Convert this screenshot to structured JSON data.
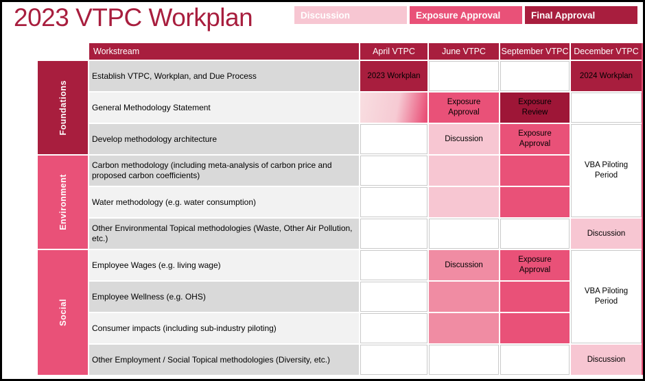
{
  "page": {
    "title": "2023 VTPC Workplan"
  },
  "colors": {
    "dark_red": "#A81E3E",
    "exposure_review_red": "#9E1637",
    "medium_pink": "#E95178",
    "light_pink": "#F7C6D2",
    "social_discussion_pink": "#F08CA3",
    "row_gray_dark": "#D9D9D9",
    "row_gray_light": "#F2F2F2",
    "table_right_border": "#E95178"
  },
  "legend": {
    "items": [
      {
        "label": "Discussion",
        "color": "#F7C6D2"
      },
      {
        "label": "Exposure Approval",
        "color": "#E95178"
      },
      {
        "label": "Final Approval",
        "color": "#A81E3E"
      }
    ]
  },
  "table": {
    "headers": {
      "workstream": "Workstream",
      "april": "April VTPC",
      "june": "June VTPC",
      "september": "September VTPC",
      "december": "December VTPC"
    },
    "categories": [
      {
        "label": "Foundations",
        "rows": "1-3",
        "color": "#A81E3E"
      },
      {
        "label": "Environment",
        "rows": "4-6",
        "color": "#E95178"
      },
      {
        "label": "Social",
        "rows": "7-10",
        "color": "#E95178"
      }
    ],
    "rows": [
      {
        "category": "Foundations",
        "workstream": "Establish VTPC, Workplan, and Due Process",
        "cells": {
          "april": {
            "label": "2023 Workplan",
            "status": "final-approval"
          },
          "june": {
            "label": "",
            "status": "none"
          },
          "september": {
            "label": "",
            "status": "none"
          },
          "december": {
            "label": "2024 Workplan",
            "status": "final-approval"
          }
        }
      },
      {
        "category": "Foundations",
        "workstream": "General Methodology Statement",
        "cells": {
          "april": {
            "label": "",
            "status": "discussion-to-exposure-gradient"
          },
          "june": {
            "label": "Exposure Approval",
            "status": "exposure-approval"
          },
          "september": {
            "label": "Exposure Review",
            "status": "exposure-review"
          },
          "december": {
            "label": "",
            "status": "none"
          }
        }
      },
      {
        "category": "Foundations",
        "workstream": "Develop methodology architecture",
        "cells": {
          "april": {
            "label": "",
            "status": "none"
          },
          "june": {
            "label": "Discussion",
            "status": "discussion"
          },
          "september": {
            "label": "Exposure Approval",
            "status": "exposure-approval"
          },
          "december": {
            "label": "VBA Piloting Period",
            "status": "piloting",
            "rowspan": 3
          }
        }
      },
      {
        "category": "Environment",
        "workstream": "Carbon methodology (including meta-analysis of carbon price and proposed carbon coefficients)",
        "cells": {
          "april": {
            "label": "",
            "status": "none"
          },
          "june": {
            "label": "",
            "status": "discussion"
          },
          "september": {
            "label": "",
            "status": "exposure-approval"
          },
          "december": {
            "merged_into": "row-3-december"
          }
        }
      },
      {
        "category": "Environment",
        "workstream": "Water methodology (e.g. water consumption)",
        "cells": {
          "april": {
            "label": "",
            "status": "none"
          },
          "june": {
            "label": "",
            "status": "discussion"
          },
          "september": {
            "label": "",
            "status": "exposure-approval"
          },
          "december": {
            "merged_into": "row-3-december"
          }
        }
      },
      {
        "category": "Environment",
        "workstream": "Other Environmental Topical methodologies (Waste, Other Air Pollution, etc.)",
        "cells": {
          "april": {
            "label": "",
            "status": "none"
          },
          "june": {
            "label": "",
            "status": "none"
          },
          "september": {
            "label": "",
            "status": "none"
          },
          "december": {
            "label": "Discussion",
            "status": "discussion"
          }
        }
      },
      {
        "category": "Social",
        "workstream": "Employee Wages (e.g. living wage)",
        "cells": {
          "april": {
            "label": "",
            "status": "none"
          },
          "june": {
            "label": "Discussion",
            "status": "discussion-dark"
          },
          "september": {
            "label": "Exposure Approval",
            "status": "exposure-approval"
          },
          "december": {
            "label": "VBA Piloting Period",
            "status": "piloting",
            "rowspan": 3
          }
        }
      },
      {
        "category": "Social",
        "workstream": "Employee Wellness (e.g. OHS)",
        "cells": {
          "april": {
            "label": "",
            "status": "none"
          },
          "june": {
            "label": "",
            "status": "discussion-dark"
          },
          "september": {
            "label": "",
            "status": "exposure-approval"
          },
          "december": {
            "merged_into": "row-7-december"
          }
        }
      },
      {
        "category": "Social",
        "workstream": "Consumer impacts (including sub-industry piloting)",
        "cells": {
          "april": {
            "label": "",
            "status": "none"
          },
          "june": {
            "label": "",
            "status": "discussion-dark"
          },
          "september": {
            "label": "",
            "status": "exposure-approval"
          },
          "december": {
            "merged_into": "row-7-december"
          }
        }
      },
      {
        "category": "Social",
        "workstream": "Other Employment / Social Topical methodologies (Diversity, etc.)",
        "cells": {
          "april": {
            "label": "",
            "status": "none"
          },
          "june": {
            "label": "",
            "status": "none"
          },
          "september": {
            "label": "",
            "status": "none"
          },
          "december": {
            "label": "Discussion",
            "status": "discussion"
          }
        }
      }
    ]
  }
}
